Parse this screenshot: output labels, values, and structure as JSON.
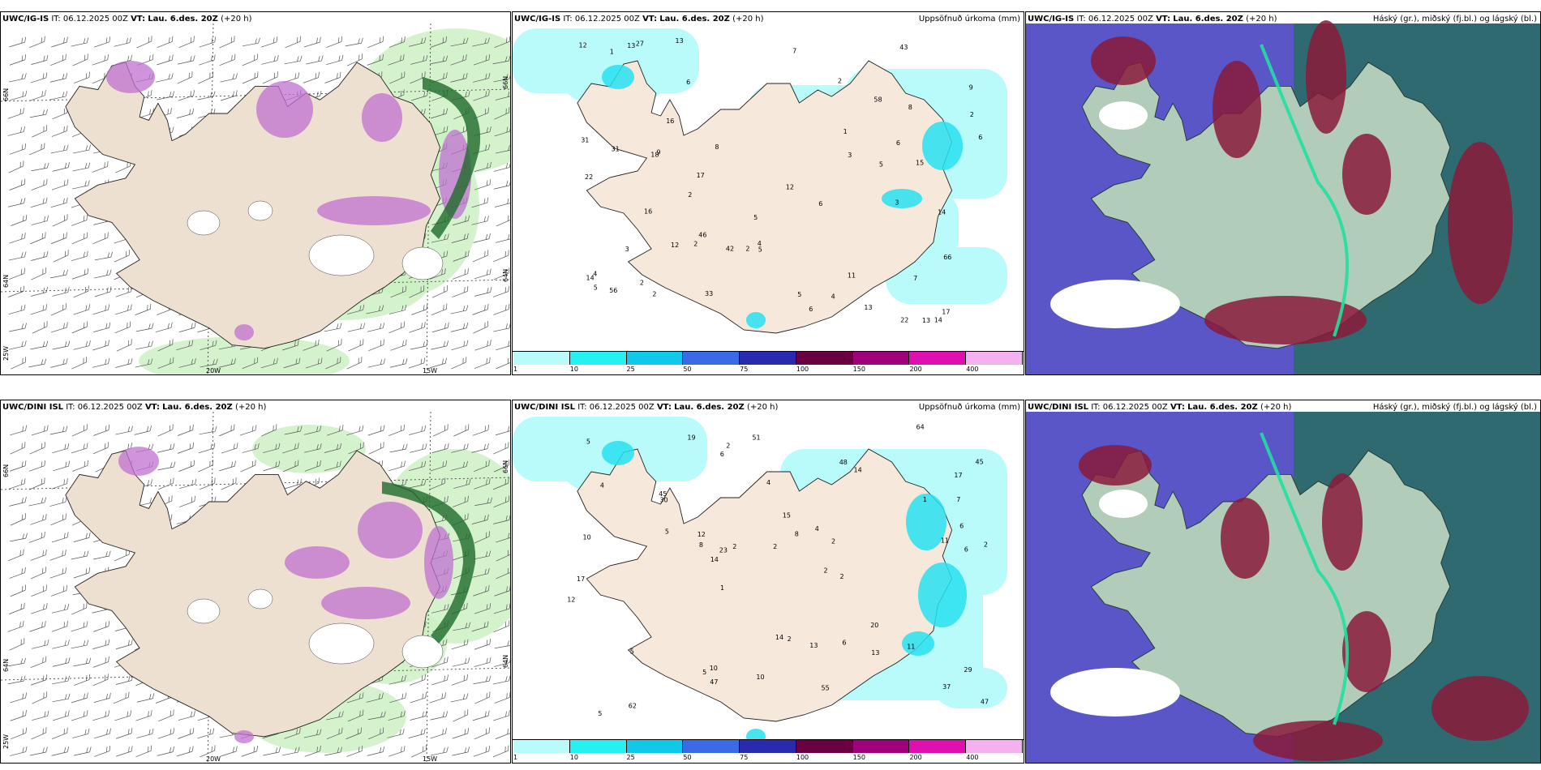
{
  "rows": [
    {
      "model": "UWC/IG-IS",
      "it_label": "IT:",
      "it_value": "06.12.2025 00Z",
      "vt_label": "VT:",
      "vt_value": "Lau. 6.des. 20Z",
      "lead": "(+20 h)"
    },
    {
      "model": "UWC/DINI ISL",
      "it_label": "IT:",
      "it_value": "06.12.2025 00Z",
      "vt_label": "VT:",
      "vt_value": "Lau. 6.des. 20Z",
      "lead": "(+20 h)"
    }
  ],
  "precip_title": "Uppsöfnuð úrkoma (mm)",
  "cloud_title": "Háský (gr.), miðský (fj.bl.) og lágský (bl.)",
  "colorbar": {
    "colors": [
      "#b9fbfb",
      "#27f0f0",
      "#10c8e8",
      "#3a6ae8",
      "#2a2ab0",
      "#6a0040",
      "#a0007a",
      "#e010b0",
      "#f4b0f0"
    ],
    "ticks": [
      "1",
      "10",
      "25",
      "50",
      "75",
      "100",
      "150",
      "200",
      "400"
    ]
  },
  "axis_labels": {
    "lon": [
      "20W",
      "15W"
    ],
    "lat_left": [
      "66N",
      "64N",
      "25W"
    ],
    "lat_right": [
      "66N",
      "64N"
    ]
  },
  "precip_values_top": [
    "5",
    "18",
    "13",
    "3",
    "14",
    "6",
    "2",
    "2",
    "2",
    "5",
    "15",
    "7",
    "12",
    "22",
    "17",
    "11",
    "12",
    "6",
    "9",
    "8",
    "13",
    "9",
    "4",
    "12",
    "7",
    "3",
    "5",
    "4",
    "8",
    "14",
    "46",
    "42",
    "56",
    "66",
    "58",
    "31",
    "31",
    "27",
    "16",
    "33",
    "22",
    "17",
    "14",
    "13",
    "5",
    "5",
    "4",
    "16",
    "13",
    "2",
    "6",
    "6",
    "6",
    "43",
    "2",
    "1",
    "2",
    "1",
    "3",
    "2"
  ],
  "precip_values_bottom": [
    "5",
    "29",
    "19",
    "5",
    "20",
    "2",
    "2",
    "2",
    "2",
    "2",
    "4",
    "6",
    "8",
    "10",
    "13",
    "5",
    "4",
    "6",
    "11",
    "5",
    "14",
    "12",
    "37",
    "51",
    "45",
    "55",
    "64",
    "62",
    "48",
    "47",
    "30",
    "47",
    "45",
    "15",
    "17",
    "17",
    "14",
    "10",
    "6",
    "5",
    "13",
    "6",
    "2",
    "2",
    "7",
    "10",
    "1",
    "14",
    "11",
    "12",
    "8",
    "23",
    "2",
    "1",
    "4"
  ]
}
